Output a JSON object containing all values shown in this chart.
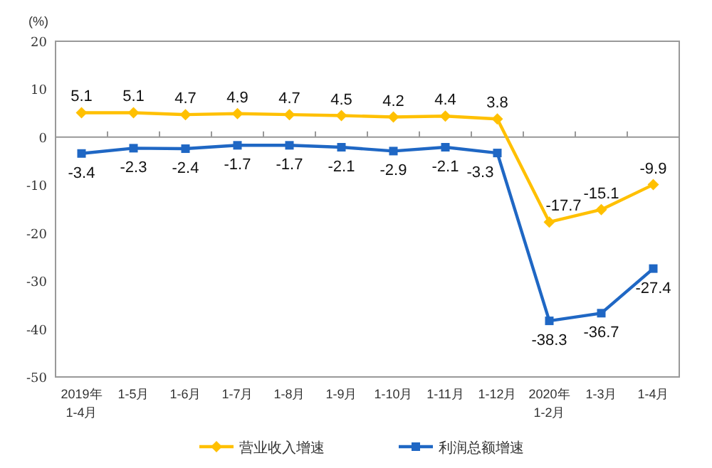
{
  "chart_data": {
    "type": "line",
    "ylabel": "(%)",
    "categories": [
      "2019年\n1-4月",
      "1-5月",
      "1-6月",
      "1-7月",
      "1-8月",
      "1-9月",
      "1-10月",
      "1-11月",
      "1-12月",
      "2020年\n1-2月",
      "1-3月",
      "1-4月"
    ],
    "series": [
      {
        "name": "营业收入增速",
        "color": "#ffc000",
        "marker": "diamond",
        "values": [
          5.1,
          5.1,
          4.7,
          4.9,
          4.7,
          4.5,
          4.2,
          4.4,
          3.8,
          -17.7,
          -15.1,
          -9.9
        ]
      },
      {
        "name": "利润总额增速",
        "color": "#1f67c4",
        "marker": "square",
        "values": [
          -3.4,
          -2.3,
          -2.4,
          -1.7,
          -1.7,
          -2.1,
          -2.9,
          -2.1,
          -3.3,
          -38.3,
          -36.7,
          -27.4
        ]
      }
    ],
    "ylim": [
      -50,
      20
    ],
    "yticks": [
      -50,
      -40,
      -30,
      -20,
      -10,
      0,
      10,
      20
    ],
    "data_labels": true,
    "legend": "bottom",
    "line_style": "solid"
  }
}
